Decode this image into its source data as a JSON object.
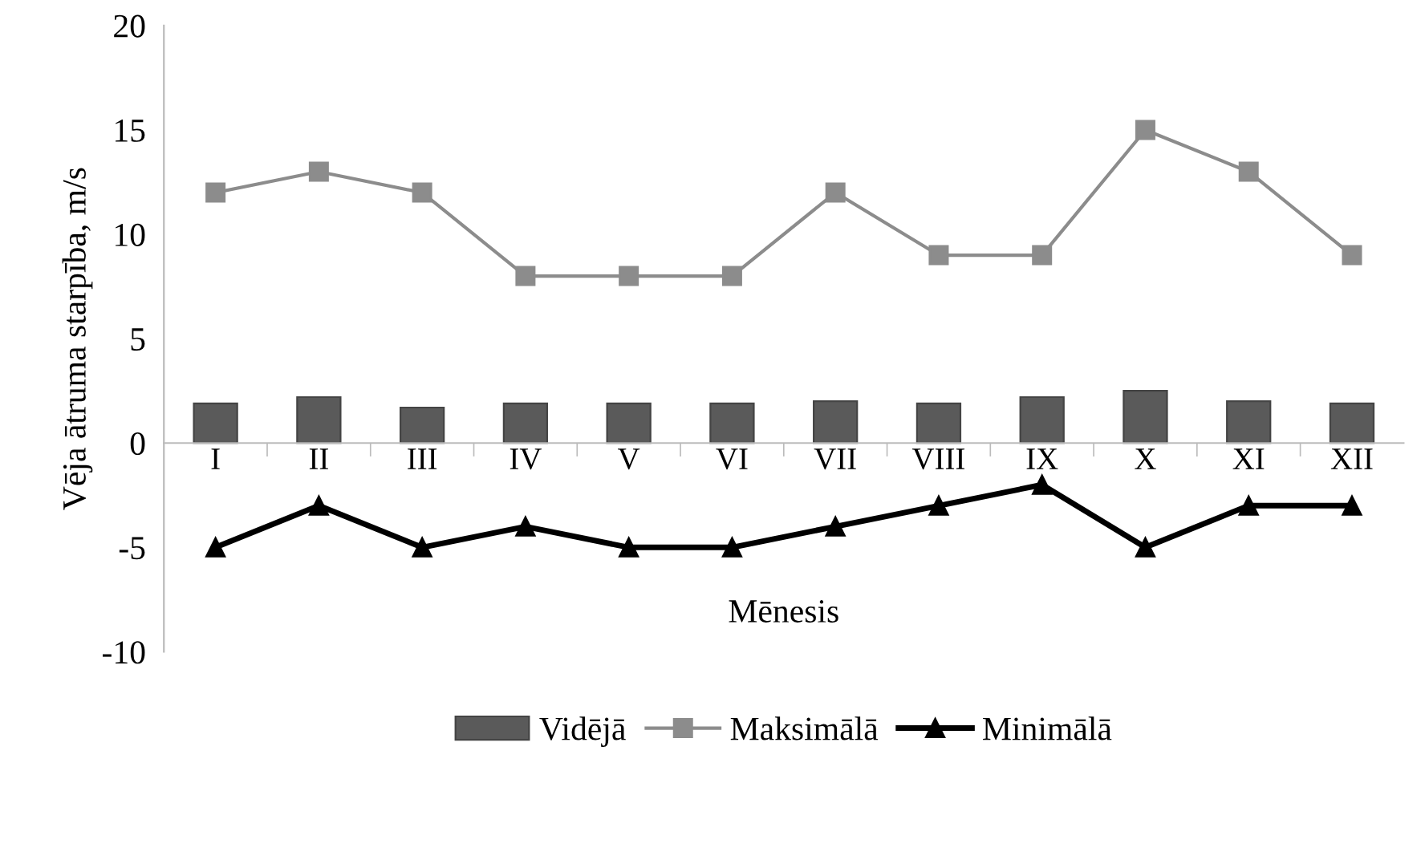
{
  "chart_data": {
    "type": "bar",
    "xlabel": "Mēnesis",
    "ylabel": "Vēja ātruma starpība, m/s",
    "categories": [
      "I",
      "II",
      "III",
      "IV",
      "V",
      "VI",
      "VII",
      "VIII",
      "IX",
      "X",
      "XI",
      "XII"
    ],
    "series": [
      {
        "name": "Vidējā",
        "color": "#5a5a5a",
        "values": [
          1.9,
          2.2,
          1.7,
          1.9,
          1.9,
          1.9,
          2.0,
          1.9,
          2.2,
          2.5,
          2.0,
          1.9
        ]
      },
      {
        "name": "Maksimālā",
        "type": "line",
        "color": "#8c8c8c",
        "marker": "square",
        "values": [
          12,
          13,
          12,
          8,
          8,
          8,
          12,
          9,
          9,
          15,
          13,
          9
        ]
      },
      {
        "name": "Minimālā",
        "type": "line",
        "color": "#000000",
        "marker": "triangle",
        "values": [
          -5,
          -3,
          -5,
          -4,
          -5,
          -5,
          -4,
          -3,
          -2,
          -5,
          -3,
          -3
        ]
      }
    ],
    "ylim": [
      -10,
      20
    ],
    "yticks": [
      -10,
      -5,
      0,
      5,
      10,
      15,
      20
    ],
    "grid": false,
    "legend": "bottom"
  }
}
